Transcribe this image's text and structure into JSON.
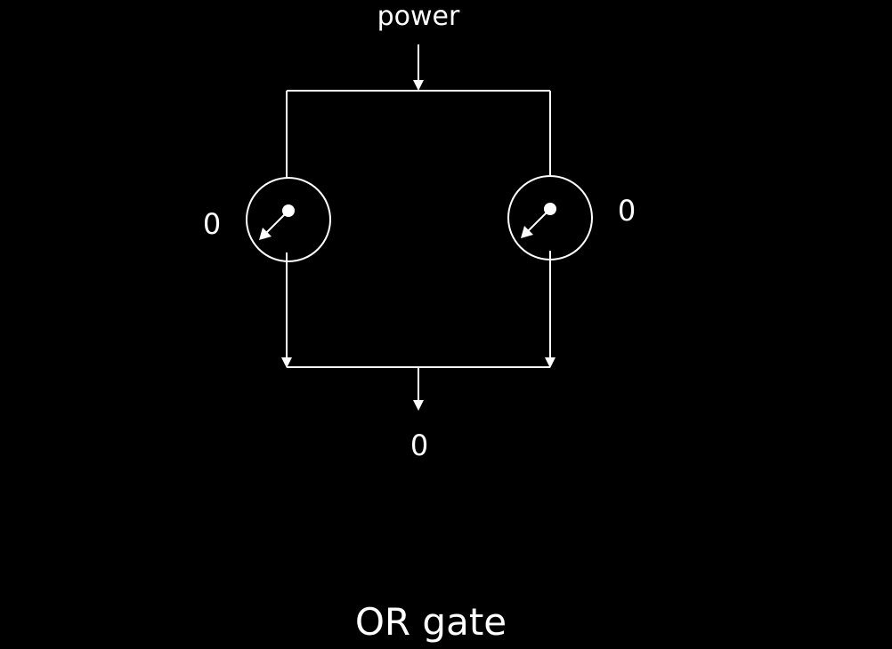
{
  "diagram": {
    "title": "OR gate",
    "power_label": "power",
    "left_input_value": "0",
    "right_input_value": "0",
    "output_value": "0"
  }
}
